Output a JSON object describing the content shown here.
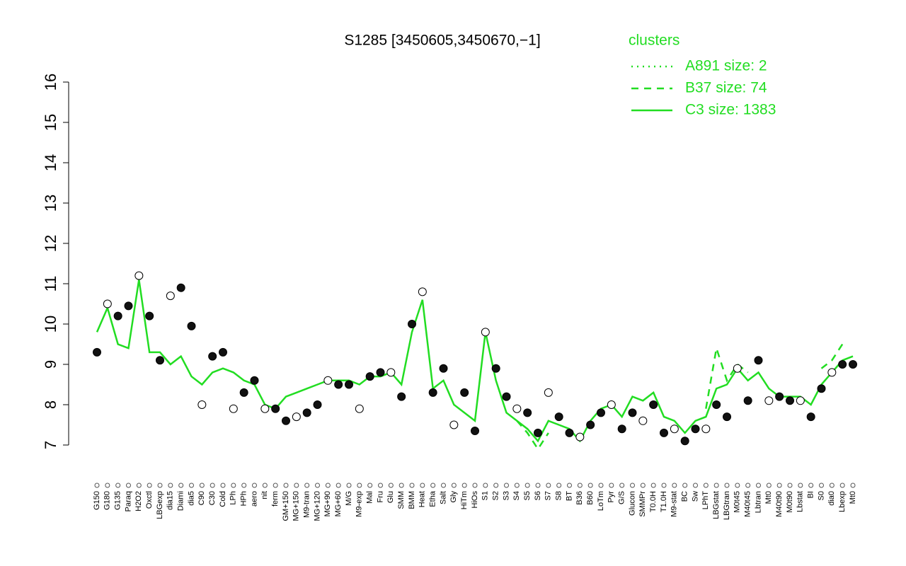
{
  "chart_data": {
    "type": "line",
    "title": "S1285 [3450605,3450670,−1]",
    "legend_title": "clusters",
    "legend_position": "top-right",
    "point_color": "#111111",
    "categories": [
      "G150",
      "G180",
      "G135",
      "Paraq",
      "H2O2",
      "Oxctl",
      "LBGexp",
      "dia15",
      "Diami",
      "dia5",
      "C90",
      "C30",
      "Cold",
      "LPh",
      "HPh",
      "aero",
      "nit",
      "ferm",
      "GM+150",
      "MG+150",
      "M9-tran",
      "MG+120",
      "MG+90",
      "MG+60",
      "M/G",
      "M9-exp",
      "Mal",
      "Fru",
      "Glu",
      "SMM",
      "BMM",
      "Heat",
      "Etha",
      "Salt",
      "Gly",
      "HiTm",
      "HiOs",
      "S1",
      "S2",
      "S3",
      "S4",
      "S5",
      "S6",
      "S7",
      "S8",
      "BT",
      "B36",
      "B60",
      "LoTm",
      "Pyr",
      "G/S",
      "Glucon",
      "SMMPr",
      "T0.0H",
      "T1.0H",
      "M9-stat",
      "BC",
      "Sw",
      "LPhT",
      "LBGstat",
      "LBGtran",
      "M0t45",
      "M40t45",
      "Lbtran",
      "Mt0",
      "M40t90",
      "M0t90",
      "Lbstat",
      "BI",
      "S0",
      "dia0",
      "Lbexp",
      "Mt0"
    ],
    "values": [
      9.3,
      10.5,
      10.2,
      10.45,
      11.2,
      10.2,
      9.1,
      10.7,
      10.9,
      9.95,
      8.0,
      9.2,
      9.3,
      7.9,
      8.3,
      8.6,
      7.9,
      7.9,
      7.6,
      7.7,
      7.8,
      8.0,
      8.6,
      8.5,
      8.5,
      7.9,
      8.7,
      8.8,
      8.8,
      8.2,
      10.0,
      10.8,
      8.3,
      8.9,
      7.5,
      8.3,
      7.35,
      9.8,
      8.9,
      8.2,
      7.9,
      7.8,
      7.3,
      8.3,
      7.7,
      7.3,
      7.2,
      7.5,
      7.8,
      8.0,
      7.4,
      7.8,
      7.6,
      8.0,
      7.3,
      7.4,
      7.1,
      7.4,
      7.4,
      8.0,
      7.7,
      8.9,
      8.1,
      9.1,
      8.1,
      8.2,
      8.1,
      8.1,
      7.7,
      8.4,
      8.8,
      9.0,
      9.0
    ],
    "series": [
      {
        "name": "A891 size: 2",
        "color": "#22dd22",
        "dash": "dotted",
        "values": [
          null,
          null,
          null,
          null,
          null,
          null,
          null,
          null,
          null,
          null,
          null,
          null,
          null,
          null,
          null,
          null,
          null,
          null,
          null,
          null,
          null,
          null,
          null,
          null,
          null,
          null,
          null,
          null,
          null,
          null,
          null,
          null,
          null,
          null,
          null,
          null,
          null,
          null,
          null,
          null,
          null,
          null,
          null,
          null,
          null,
          null,
          null,
          null,
          null,
          null,
          null,
          null,
          null,
          null,
          null,
          null,
          null,
          null,
          null,
          null,
          null,
          null,
          null,
          null,
          null,
          null,
          null,
          null,
          null,
          null,
          null,
          null,
          null
        ]
      },
      {
        "name": "B37 size: 74",
        "color": "#22dd22",
        "dash": "dashed",
        "values": [
          null,
          null,
          null,
          null,
          null,
          null,
          null,
          null,
          null,
          null,
          null,
          null,
          null,
          null,
          null,
          null,
          null,
          null,
          null,
          null,
          null,
          null,
          null,
          null,
          null,
          null,
          null,
          null,
          null,
          null,
          null,
          null,
          null,
          null,
          null,
          null,
          null,
          null,
          null,
          null,
          7.6,
          7.3,
          6.9,
          7.3,
          null,
          null,
          null,
          null,
          null,
          null,
          null,
          null,
          null,
          null,
          null,
          null,
          null,
          null,
          7.9,
          9.4,
          8.6,
          9.0,
          8.8,
          null,
          null,
          null,
          null,
          null,
          null,
          8.9,
          9.1,
          9.5,
          null
        ]
      },
      {
        "name": "C3 size: 1383",
        "color": "#22dd22",
        "dash": "solid",
        "values": [
          9.8,
          10.4,
          9.5,
          9.4,
          11.1,
          9.3,
          9.3,
          9.0,
          9.2,
          8.7,
          8.5,
          8.8,
          8.9,
          8.8,
          8.6,
          8.5,
          8.0,
          7.9,
          8.2,
          8.3,
          8.4,
          8.5,
          8.6,
          8.6,
          8.6,
          8.5,
          8.7,
          8.7,
          8.8,
          8.5,
          9.8,
          10.6,
          8.4,
          8.6,
          8.0,
          7.8,
          7.6,
          9.8,
          8.6,
          7.8,
          7.6,
          7.4,
          7.1,
          7.6,
          7.5,
          7.4,
          7.1,
          7.6,
          7.9,
          8.0,
          7.7,
          8.2,
          8.1,
          8.3,
          7.7,
          7.6,
          7.3,
          7.6,
          7.7,
          8.4,
          8.5,
          8.9,
          8.6,
          8.8,
          8.4,
          8.2,
          8.2,
          8.2,
          8.0,
          8.5,
          8.8,
          9.1,
          9.2
        ]
      }
    ],
    "ylim": [
      7,
      16
    ],
    "yticks": [
      7,
      8,
      9,
      10,
      11,
      12,
      13,
      14,
      15,
      16
    ]
  }
}
